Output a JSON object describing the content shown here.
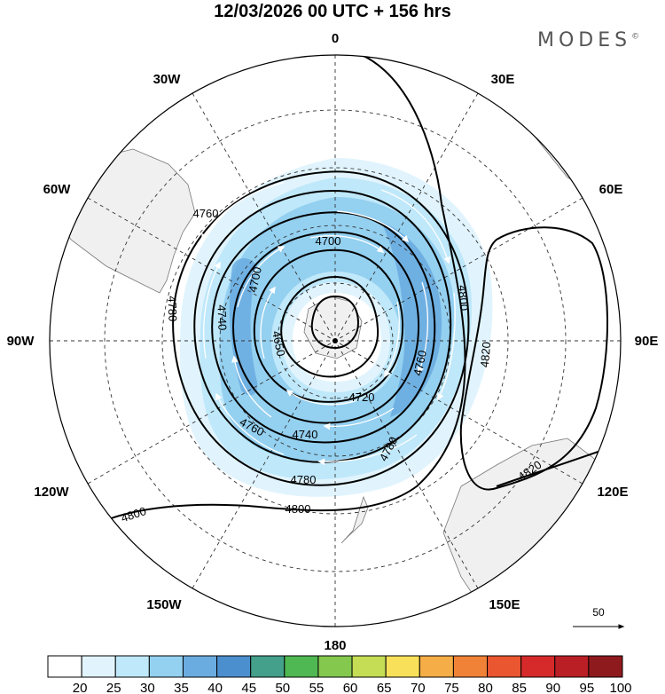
{
  "title": "12/03/2026  00 UTC  + 156 hrs",
  "brand": "MODES",
  "brand_mark": "©",
  "longitude_labels": [
    "0",
    "30E",
    "60E",
    "90E",
    "120E",
    "150E",
    "180",
    "150W",
    "120W",
    "90W",
    "60W",
    "30W"
  ],
  "contour_labels": [
    "4650",
    "4700",
    "4700",
    "4720",
    "4740",
    "4740",
    "4760",
    "4760",
    "4760",
    "4780",
    "4780",
    "4780",
    "4800",
    "4800",
    "4800",
    "4820",
    "4820"
  ],
  "reference_vector_label": "50",
  "colorbar": {
    "ticks": [
      "20",
      "25",
      "30",
      "35",
      "40",
      "45",
      "50",
      "55",
      "60",
      "65",
      "70",
      "75",
      "80",
      "85",
      "90",
      "95",
      "100"
    ],
    "colors": [
      "#ffffff",
      "#e1f4fd",
      "#bfe8fa",
      "#94d0f0",
      "#6aace0",
      "#4b8fce",
      "#44a08a",
      "#4fb852",
      "#84c84e",
      "#c5dc55",
      "#f8e05a",
      "#f5ad47",
      "#f08238",
      "#e9562f",
      "#d62a2a",
      "#bb1f26",
      "#8f1a1e"
    ]
  }
}
